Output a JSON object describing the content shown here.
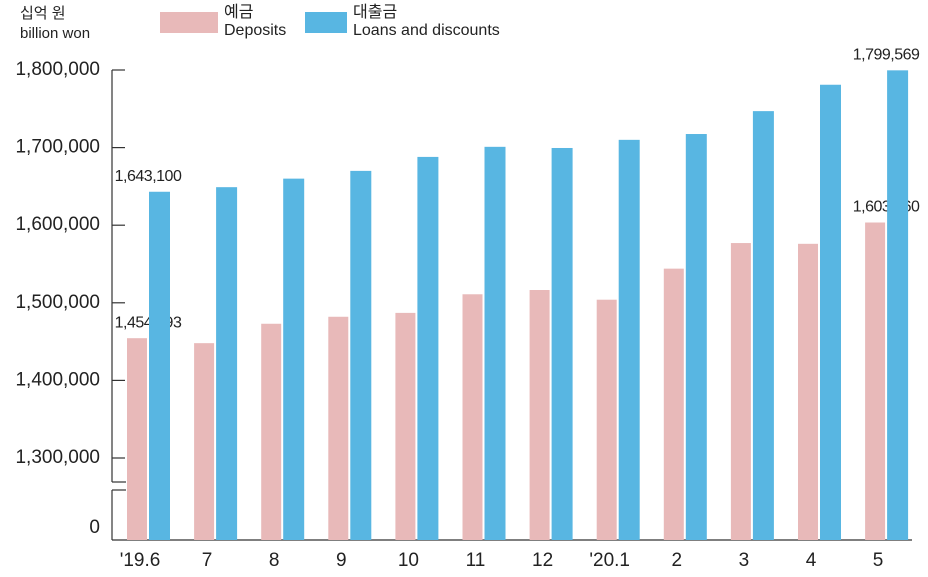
{
  "chart_data": {
    "type": "bar",
    "unit_ko": "십억 원",
    "unit_en": "billion won",
    "categories": [
      "'19.6",
      "7",
      "8",
      "9",
      "10",
      "11",
      "12",
      "'20.1",
      "2",
      "3",
      "4",
      "5"
    ],
    "series": [
      {
        "name": "예금",
        "name_en": "Deposits",
        "color": "#e8b9b9",
        "label_color": "#222222",
        "values": [
          1454393,
          1448000,
          1473000,
          1482000,
          1487000,
          1511000,
          1516500,
          1504000,
          1544000,
          1577000,
          1576000,
          1603460
        ],
        "value_labels": [
          "1,454,393",
          null,
          null,
          null,
          null,
          null,
          null,
          null,
          null,
          null,
          null,
          "1,603,460"
        ]
      },
      {
        "name": "대출금",
        "name_en": "Loans and discounts",
        "color": "#58b6e2",
        "label_color": "#1a7fc0",
        "values": [
          1643100,
          1649000,
          1660000,
          1670000,
          1688000,
          1701000,
          1699500,
          1710000,
          1717500,
          1747000,
          1781000,
          1799569
        ],
        "value_labels": [
          "1,643,100",
          null,
          null,
          null,
          null,
          null,
          null,
          null,
          null,
          null,
          null,
          "1,799,569"
        ]
      }
    ],
    "ylim": [
      1300000,
      1800000
    ],
    "yticks": [
      0,
      {
        "value": 1300000,
        "label": "1,300,000"
      },
      {
        "value": 1400000,
        "label": "1,400,000"
      },
      {
        "value": 1500000,
        "label": "1,500,000"
      },
      {
        "value": 1600000,
        "label": "1,600,000"
      },
      {
        "value": 1700000,
        "label": "1,700,000"
      },
      {
        "value": 1800000,
        "label": "1,800,000"
      }
    ],
    "axis_break": true,
    "grid": false
  }
}
